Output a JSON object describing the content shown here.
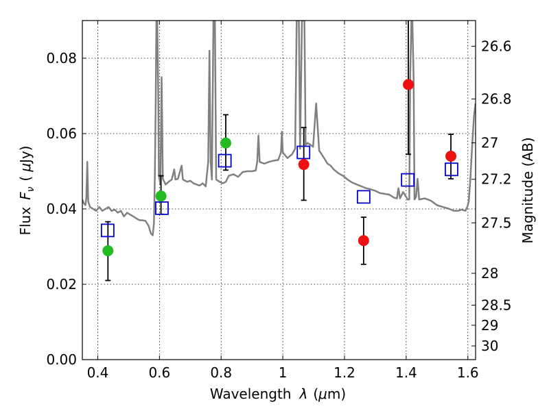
{
  "chart_data": {
    "type": "scatter",
    "xlabel_parts": [
      "Wavelength",
      "λ",
      "(",
      "μ",
      "m)"
    ],
    "ylabel_parts": [
      "Flux",
      "F",
      "ν",
      "(",
      "μ",
      "Jy",
      ")"
    ],
    "y2label": "Magnitude (AB)",
    "xlim": [
      0.35,
      1.625
    ],
    "ylim": [
      0.0,
      0.09
    ],
    "grid": true,
    "x_ticks": [
      0.4,
      0.6,
      0.8,
      1.0,
      1.2,
      1.4,
      1.6
    ],
    "x_tick_labels": [
      "0.4",
      "0.6",
      "0.8",
      "1",
      "1.2",
      "1.4",
      "1.6"
    ],
    "y_ticks": [
      0.0,
      0.02,
      0.04,
      0.06,
      0.08
    ],
    "y_tick_labels": [
      "0.00",
      "0.02",
      "0.04",
      "0.06",
      "0.08"
    ],
    "y2_ticks": [
      26.6,
      26.8,
      27,
      27.2,
      27.5,
      28,
      28.5,
      29,
      30
    ],
    "y2_tick_labels": [
      "26.6",
      "26.8",
      "27",
      "27.2",
      "27.5",
      "28",
      "28.5",
      "29",
      "30"
    ],
    "colors": {
      "sed": "#808080",
      "model": "#0000cc",
      "green": "#22bb22",
      "red": "#ee1111",
      "errorbar": "#000000"
    },
    "series": [
      {
        "type": "line",
        "points": [
          [
            0.35,
            0.0425
          ],
          [
            0.355,
            0.0415
          ],
          [
            0.36,
            0.041
          ],
          [
            0.363,
            0.043
          ],
          [
            0.366,
            0.0525
          ],
          [
            0.369,
            0.042
          ],
          [
            0.375,
            0.0405
          ],
          [
            0.385,
            0.04
          ],
          [
            0.395,
            0.0395
          ],
          [
            0.405,
            0.0405
          ],
          [
            0.415,
            0.0395
          ],
          [
            0.425,
            0.04
          ],
          [
            0.435,
            0.0405
          ],
          [
            0.445,
            0.0395
          ],
          [
            0.455,
            0.0398
          ],
          [
            0.465,
            0.039
          ],
          [
            0.475,
            0.0395
          ],
          [
            0.485,
            0.038
          ],
          [
            0.495,
            0.039
          ],
          [
            0.505,
            0.0385
          ],
          [
            0.515,
            0.038
          ],
          [
            0.525,
            0.0375
          ],
          [
            0.535,
            0.037
          ],
          [
            0.545,
            0.037
          ],
          [
            0.555,
            0.0368
          ],
          [
            0.565,
            0.0355
          ],
          [
            0.572,
            0.0335
          ],
          [
            0.578,
            0.033
          ],
          [
            0.582,
            0.036
          ],
          [
            0.585,
            0.048
          ],
          [
            0.588,
            0.07
          ],
          [
            0.59,
            0.09
          ],
          [
            0.593,
            0.09
          ],
          [
            0.596,
            0.07
          ],
          [
            0.598,
            0.049
          ],
          [
            0.603,
            0.0465
          ],
          [
            0.607,
            0.075
          ],
          [
            0.611,
            0.048
          ],
          [
            0.62,
            0.0465
          ],
          [
            0.63,
            0.0472
          ],
          [
            0.64,
            0.0478
          ],
          [
            0.648,
            0.0505
          ],
          [
            0.652,
            0.0478
          ],
          [
            0.66,
            0.048
          ],
          [
            0.672,
            0.0515
          ],
          [
            0.676,
            0.0478
          ],
          [
            0.69,
            0.0472
          ],
          [
            0.7,
            0.0475
          ],
          [
            0.71,
            0.0468
          ],
          [
            0.72,
            0.0465
          ],
          [
            0.73,
            0.0462
          ],
          [
            0.74,
            0.0468
          ],
          [
            0.75,
            0.046
          ],
          [
            0.758,
            0.0525
          ],
          [
            0.762,
            0.082
          ],
          [
            0.766,
            0.0525
          ],
          [
            0.77,
            0.0478
          ],
          [
            0.775,
            0.09
          ],
          [
            0.78,
            0.09
          ],
          [
            0.784,
            0.0478
          ],
          [
            0.795,
            0.0472
          ],
          [
            0.805,
            0.0468
          ],
          [
            0.815,
            0.0472
          ],
          [
            0.825,
            0.0488
          ],
          [
            0.84,
            0.0492
          ],
          [
            0.855,
            0.0485
          ],
          [
            0.87,
            0.0498
          ],
          [
            0.885,
            0.05
          ],
          [
            0.9,
            0.05
          ],
          [
            0.912,
            0.0502
          ],
          [
            0.917,
            0.0525
          ],
          [
            0.921,
            0.0595
          ],
          [
            0.925,
            0.0525
          ],
          [
            0.94,
            0.052
          ],
          [
            0.955,
            0.0525
          ],
          [
            0.97,
            0.0528
          ],
          [
            0.985,
            0.053
          ],
          [
            0.994,
            0.055
          ],
          [
            0.997,
            0.0605
          ],
          [
            1.0,
            0.055
          ],
          [
            1.015,
            0.0535
          ],
          [
            1.03,
            0.0545
          ],
          [
            1.04,
            0.056
          ],
          [
            1.045,
            0.09
          ],
          [
            1.052,
            0.09
          ],
          [
            1.056,
            0.056
          ],
          [
            1.062,
            0.09
          ],
          [
            1.07,
            0.09
          ],
          [
            1.074,
            0.057
          ],
          [
            1.08,
            0.0575
          ],
          [
            1.09,
            0.057
          ],
          [
            1.098,
            0.0565
          ],
          [
            1.108,
            0.068
          ],
          [
            1.118,
            0.0555
          ],
          [
            1.13,
            0.054
          ],
          [
            1.145,
            0.052
          ],
          [
            1.155,
            0.0515
          ],
          [
            1.165,
            0.0505
          ],
          [
            1.18,
            0.0495
          ],
          [
            1.195,
            0.0488
          ],
          [
            1.21,
            0.0478
          ],
          [
            1.225,
            0.047
          ],
          [
            1.24,
            0.0465
          ],
          [
            1.255,
            0.046
          ],
          [
            1.27,
            0.0455
          ],
          [
            1.285,
            0.0452
          ],
          [
            1.3,
            0.0448
          ],
          [
            1.315,
            0.0442
          ],
          [
            1.33,
            0.044
          ],
          [
            1.345,
            0.0438
          ],
          [
            1.36,
            0.043
          ],
          [
            1.37,
            0.0428
          ],
          [
            1.375,
            0.0455
          ],
          [
            1.38,
            0.0428
          ],
          [
            1.39,
            0.0445
          ],
          [
            1.4,
            0.0432
          ],
          [
            1.405,
            0.0425
          ],
          [
            1.41,
            0.0425
          ],
          [
            1.413,
            0.075
          ],
          [
            1.417,
            0.09
          ],
          [
            1.42,
            0.09
          ],
          [
            1.424,
            0.075
          ],
          [
            1.427,
            0.0425
          ],
          [
            1.432,
            0.0432
          ],
          [
            1.437,
            0.048
          ],
          [
            1.442,
            0.0425
          ],
          [
            1.46,
            0.0428
          ],
          [
            1.48,
            0.0422
          ],
          [
            1.5,
            0.041
          ],
          [
            1.52,
            0.0405
          ],
          [
            1.54,
            0.04
          ],
          [
            1.555,
            0.0395
          ],
          [
            1.568,
            0.0395
          ],
          [
            1.58,
            0.0398
          ],
          [
            1.592,
            0.0395
          ],
          [
            1.598,
            0.0405
          ],
          [
            1.603,
            0.042
          ],
          [
            1.608,
            0.048
          ],
          [
            1.614,
            0.057
          ],
          [
            1.62,
            0.065
          ],
          [
            1.625,
            0.068
          ]
        ]
      },
      {
        "type": "scatter",
        "marker": "square",
        "x": [
          0.432,
          0.608,
          0.812,
          1.067,
          1.262,
          1.405,
          1.547
        ],
        "y": [
          0.0343,
          0.0402,
          0.0528,
          0.055,
          0.0432,
          0.0477,
          0.0505
        ]
      },
      {
        "type": "scatter",
        "marker": "circle",
        "color": "green",
        "x": [
          0.433,
          0.605,
          0.815
        ],
        "y": [
          0.0289,
          0.0434,
          0.0575
        ],
        "err_low": [
          0.0079,
          0.0048,
          0.0072
        ],
        "err_high": [
          0.0077,
          0.0054,
          0.0075
        ]
      },
      {
        "type": "scatter",
        "marker": "circle",
        "color": "red",
        "x": [
          1.068,
          1.262,
          1.407,
          1.545
        ],
        "y": [
          0.0518,
          0.0316,
          0.073,
          0.054
        ],
        "err_low": [
          0.0095,
          0.0063,
          0.0185,
          0.006
        ],
        "err_high": [
          0.0098,
          0.0062,
          0.018,
          0.0058
        ]
      }
    ]
  }
}
